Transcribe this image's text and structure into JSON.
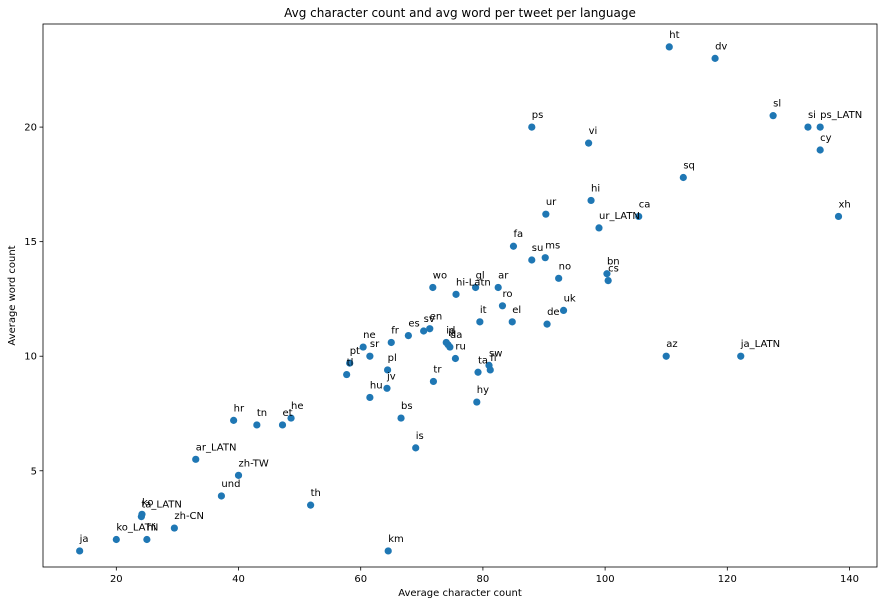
{
  "chart_data": {
    "type": "scatter",
    "title": "Avg character count and avg word per tweet per language",
    "xlabel": "Average character count",
    "ylabel": "Average word count",
    "xlim": [
      8.0,
      144.5
    ],
    "ylim": [
      0.8,
      24.5
    ],
    "xticks": [
      20,
      40,
      60,
      80,
      100,
      120,
      140
    ],
    "yticks": [
      5,
      10,
      15,
      20
    ],
    "grid": false,
    "marker_color": "#1f77b4",
    "points": [
      {
        "label": "ja",
        "x": 14.0,
        "y": 1.5
      },
      {
        "label": "ko_LATN",
        "x": 20.0,
        "y": 2.0
      },
      {
        "label": "ko",
        "x": 24.2,
        "y": 3.1
      },
      {
        "label": "ta_LATN",
        "x": 24.1,
        "y": 3.0
      },
      {
        "label": "hi",
        "x": 25.0,
        "y": 2.0
      },
      {
        "label": "zh-CN",
        "x": 29.5,
        "y": 2.5
      },
      {
        "label": "ar_LATN",
        "x": 33.0,
        "y": 5.5
      },
      {
        "label": "und",
        "x": 37.2,
        "y": 3.9
      },
      {
        "label": "zh-TW",
        "x": 40.0,
        "y": 4.8
      },
      {
        "label": "hr",
        "x": 39.2,
        "y": 7.2
      },
      {
        "label": "tn",
        "x": 43.0,
        "y": 7.0
      },
      {
        "label": "et",
        "x": 47.2,
        "y": 7.0
      },
      {
        "label": "he",
        "x": 48.6,
        "y": 7.3
      },
      {
        "label": "th",
        "x": 51.8,
        "y": 3.5
      },
      {
        "label": "tl",
        "x": 57.7,
        "y": 9.2
      },
      {
        "label": "pt",
        "x": 58.2,
        "y": 9.7
      },
      {
        "label": "ne",
        "x": 60.4,
        "y": 10.4
      },
      {
        "label": "sr",
        "x": 61.5,
        "y": 10.0
      },
      {
        "label": "hu",
        "x": 61.5,
        "y": 8.2
      },
      {
        "label": "km",
        "x": 64.5,
        "y": 1.5
      },
      {
        "label": "pl",
        "x": 64.4,
        "y": 9.4
      },
      {
        "label": "jv",
        "x": 64.3,
        "y": 8.6
      },
      {
        "label": "fr",
        "x": 65.0,
        "y": 10.6
      },
      {
        "label": "es",
        "x": 67.8,
        "y": 10.9
      },
      {
        "label": "bs",
        "x": 66.6,
        "y": 7.3
      },
      {
        "label": "sv",
        "x": 70.3,
        "y": 11.1
      },
      {
        "label": "en",
        "x": 71.3,
        "y": 11.2
      },
      {
        "label": "is",
        "x": 69.0,
        "y": 6.0
      },
      {
        "label": "tr",
        "x": 71.9,
        "y": 8.9
      },
      {
        "label": "id",
        "x": 74.0,
        "y": 10.6
      },
      {
        "label": "it",
        "x": 74.3,
        "y": 10.5
      },
      {
        "label": "da",
        "x": 74.6,
        "y": 10.4
      },
      {
        "label": "ru",
        "x": 75.5,
        "y": 9.9
      },
      {
        "label": "wo",
        "x": 71.8,
        "y": 13.0
      },
      {
        "label": "hi-Latn",
        "x": 75.6,
        "y": 12.7
      },
      {
        "label": "gl",
        "x": 78.8,
        "y": 13.0
      },
      {
        "label": "ar",
        "x": 82.5,
        "y": 13.0
      },
      {
        "label": "ro",
        "x": 83.2,
        "y": 12.2
      },
      {
        "label": "el",
        "x": 84.8,
        "y": 11.5
      },
      {
        "label": "it",
        "x": 79.5,
        "y": 11.5
      },
      {
        "label": "ta",
        "x": 79.2,
        "y": 9.3
      },
      {
        "label": "sw",
        "x": 81.0,
        "y": 9.6
      },
      {
        "label": "fi",
        "x": 81.2,
        "y": 9.4
      },
      {
        "label": "hy",
        "x": 79.0,
        "y": 8.0
      },
      {
        "label": "fa",
        "x": 85.0,
        "y": 14.8
      },
      {
        "label": "ps",
        "x": 88.0,
        "y": 20.0
      },
      {
        "label": "su",
        "x": 88.0,
        "y": 14.2
      },
      {
        "label": "ms",
        "x": 90.2,
        "y": 14.3
      },
      {
        "label": "ur",
        "x": 90.3,
        "y": 16.2
      },
      {
        "label": "de",
        "x": 90.5,
        "y": 11.4
      },
      {
        "label": "no",
        "x": 92.4,
        "y": 13.4
      },
      {
        "label": "uk",
        "x": 93.2,
        "y": 12.0
      },
      {
        "label": "vi",
        "x": 97.3,
        "y": 19.3
      },
      {
        "label": "hi",
        "x": 97.7,
        "y": 16.8
      },
      {
        "label": "ur_LATN",
        "x": 99.0,
        "y": 15.6
      },
      {
        "label": "bn",
        "x": 100.3,
        "y": 13.6
      },
      {
        "label": "cs",
        "x": 100.5,
        "y": 13.3
      },
      {
        "label": "ca",
        "x": 105.5,
        "y": 16.1
      },
      {
        "label": "ht",
        "x": 110.5,
        "y": 23.5
      },
      {
        "label": "dv",
        "x": 118.0,
        "y": 23.0
      },
      {
        "label": "sq",
        "x": 112.8,
        "y": 17.8
      },
      {
        "label": "az",
        "x": 110.0,
        "y": 10.0
      },
      {
        "label": "ja_LATN",
        "x": 122.2,
        "y": 10.0
      },
      {
        "label": "sl",
        "x": 127.5,
        "y": 20.5
      },
      {
        "label": "si",
        "x": 133.2,
        "y": 20.0
      },
      {
        "label": "ps_LATN",
        "x": 135.2,
        "y": 20.0
      },
      {
        "label": "cy",
        "x": 135.2,
        "y": 19.0
      },
      {
        "label": "xh",
        "x": 138.2,
        "y": 16.1
      }
    ]
  }
}
